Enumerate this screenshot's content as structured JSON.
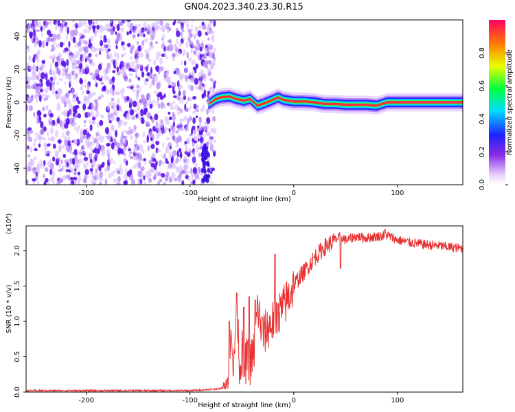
{
  "title": "GN04.2023.340.23.30.R15",
  "colors": {
    "snr_line": "#e83030",
    "noise": "#9a5cf0",
    "noise_dark": "#5a12e8"
  },
  "chart_data": [
    {
      "type": "heatmap",
      "xlabel": "Height of straight line (km)",
      "ylabel": "Frequency (Hz)",
      "xlim": [
        -258,
        163
      ],
      "ylim": [
        -50,
        50
      ],
      "x_ticks": [
        -200,
        -100,
        0,
        100
      ],
      "y_ticks": [
        -40,
        -20,
        0,
        20,
        40
      ],
      "colorbar": {
        "label": "Normalized spectral amplitude",
        "range": [
          0,
          1
        ],
        "ticks": [
          "0.0",
          "0.2",
          "0.4",
          "0.6",
          "0.8"
        ],
        "colormap": "rainbow (violet-blue-cyan-green-yellow-red)"
      },
      "signal_ridge": {
        "x": [
          -82,
          -75,
          -70,
          -62,
          -55,
          -48,
          -42,
          -35,
          -30,
          -22,
          -15,
          -10,
          -5,
          0,
          10,
          20,
          30,
          40,
          50,
          60,
          70,
          80,
          90,
          100,
          110,
          120,
          130,
          140,
          150,
          163
        ],
        "freq": [
          -1,
          2,
          3,
          3.5,
          2,
          1,
          2,
          -2,
          -1,
          1,
          3,
          1.5,
          1,
          0.5,
          0.5,
          0,
          -1,
          -1,
          -1.5,
          -1.5,
          -1.5,
          -2,
          0,
          0,
          0,
          0,
          0,
          0,
          0,
          0
        ]
      },
      "noise_region_x": [
        -258,
        -82
      ]
    },
    {
      "type": "line",
      "xlabel": "Height of straight line (km)",
      "ylabel": "SNR (10 * v/v)",
      "y_multiplier": "(x10⁴)",
      "xlim": [
        -258,
        163
      ],
      "ylim": [
        0,
        2.35
      ],
      "x_ticks": [
        -200,
        -100,
        0,
        100
      ],
      "y_ticks": [
        "0.0",
        "0.5",
        "1.0",
        "1.5",
        "2.0"
      ],
      "series": [
        {
          "x": [
            -258,
            -200,
            -150,
            -100,
            -70,
            -62,
            -60,
            -58,
            -55,
            -52,
            -50,
            -48,
            -45,
            -42,
            -38,
            -35,
            -30,
            -25,
            -20,
            -15,
            -10,
            -5,
            0,
            5,
            10,
            15,
            20,
            25,
            30,
            35,
            40,
            45,
            50,
            60,
            70,
            80,
            90,
            100,
            110,
            120,
            130,
            140,
            150,
            163
          ],
          "values": [
            0.02,
            0.02,
            0.02,
            0.02,
            0.05,
            0.2,
            1.0,
            0.2,
            1.4,
            0.3,
            0.6,
            0.3,
            0.5,
            0.4,
            0.6,
            1.2,
            0.8,
            0.9,
            1.0,
            1.1,
            1.2,
            1.35,
            1.5,
            1.62,
            1.7,
            1.8,
            1.9,
            1.98,
            2.05,
            2.1,
            2.15,
            2.2,
            2.15,
            2.2,
            2.18,
            2.2,
            2.22,
            2.15,
            2.12,
            2.1,
            2.08,
            2.07,
            2.05,
            2.03
          ]
        }
      ],
      "spikes": [
        {
          "x": -62,
          "value": 1.0
        },
        {
          "x": -55,
          "value": 1.4
        },
        {
          "x": -48,
          "value": 1.2
        },
        {
          "x": -43,
          "value": 1.35
        },
        {
          "x": -37,
          "value": 1.3
        },
        {
          "x": -30,
          "value": 1.05
        },
        {
          "x": -18,
          "value": 1.95
        },
        {
          "x": -15,
          "value": 1.25
        },
        {
          "x": 45,
          "value": 1.75
        },
        {
          "x": 88,
          "value": 2.3
        }
      ]
    }
  ]
}
